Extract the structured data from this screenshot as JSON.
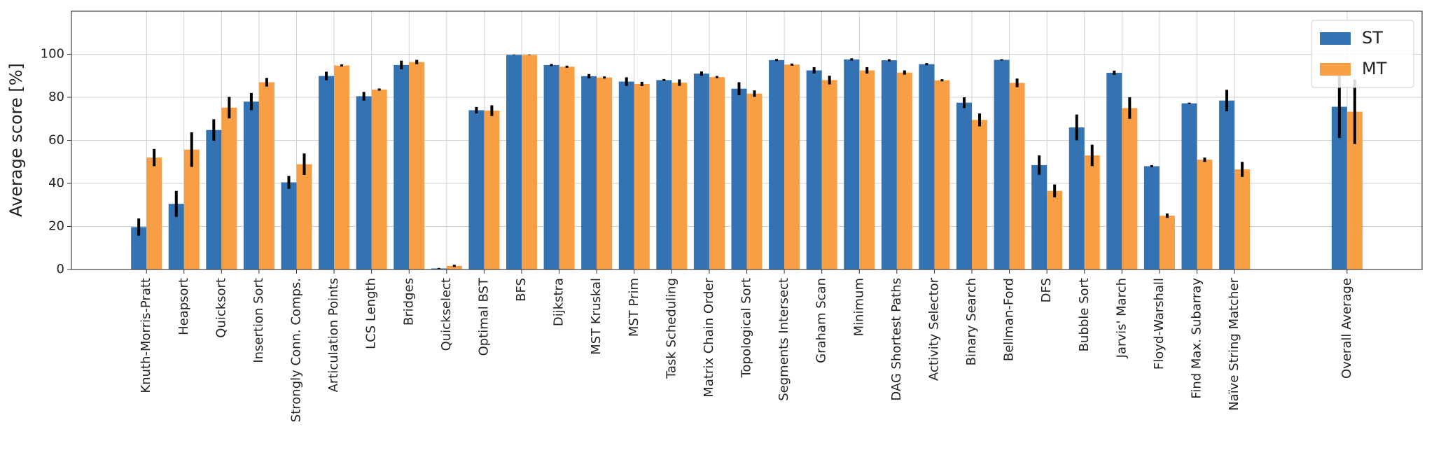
{
  "chart_data": {
    "type": "bar",
    "y_label": "Average score [%]",
    "categories": [
      "Knuth-Morris-Pratt",
      "Heapsort",
      "Quicksort",
      "Insertion Sort",
      "Strongly Conn. Comps.",
      "Articulation Points",
      "LCS Length",
      "Bridges",
      "Quickselect",
      "Optimal BST",
      "BFS",
      "Dijkstra",
      "MST Kruskal",
      "MST Prim",
      "Task Scheduling",
      "Matrix Chain Order",
      "Topological Sort",
      "Segments Intersect",
      "Graham Scan",
      "Minimum",
      "DAG Shortest Paths",
      "Activity Selector",
      "Binary Search",
      "Bellman-Ford",
      "DFS",
      "Bubble Sort",
      "Jarvis' March",
      "Floyd-Warshall",
      "Find Max. Subarray",
      "Naïve String Matcher",
      null,
      null,
      "Overall Average"
    ],
    "series": [
      {
        "name": "ST",
        "color": "#3373b3",
        "values": [
          19.7,
          30.5,
          64.8,
          78,
          40.5,
          89.9,
          80.5,
          95,
          0.5,
          74,
          99.7,
          95,
          89.8,
          87.3,
          88,
          91,
          84,
          97.3,
          92.5,
          97.6,
          97.2,
          95.4,
          77.5,
          97.4,
          48.5,
          66,
          91.4,
          48,
          77.2,
          78.5,
          null,
          null,
          75.6
        ],
        "errors": [
          4,
          6,
          5,
          4,
          3,
          2,
          2,
          2,
          0.2,
          1.5,
          0.1,
          0.5,
          1,
          2,
          0.5,
          1,
          3,
          0.5,
          1.5,
          0.5,
          0.5,
          0.5,
          2.5,
          0.3,
          4.5,
          6,
          1,
          0.5,
          0.3,
          5,
          null,
          null,
          14.5
        ]
      },
      {
        "name": "MT",
        "color": "#f89f45",
        "values": [
          52,
          55.7,
          75.2,
          87,
          48.9,
          94.8,
          83.6,
          96.4,
          1.7,
          73.8,
          99.7,
          94.2,
          89.2,
          86.2,
          86.8,
          89.4,
          81.7,
          95.2,
          88,
          92.5,
          91.5,
          87.9,
          69.5,
          86.7,
          36.5,
          53,
          75,
          25,
          51,
          46.5,
          null,
          null,
          73.3
        ],
        "errors": [
          4,
          8,
          5,
          2,
          5,
          0.5,
          0.5,
          1,
          0.5,
          2.5,
          0.1,
          0.5,
          0.5,
          1,
          1.5,
          0.5,
          1.5,
          0.5,
          2,
          1.5,
          1,
          0.5,
          3,
          2,
          3,
          5,
          5,
          1,
          1,
          3.5,
          null,
          null,
          15
        ]
      }
    ],
    "ylim": [
      0,
      120
    ],
    "yticks": [
      0,
      20,
      40,
      60,
      80,
      100
    ],
    "grid": true,
    "legend": "upper right"
  }
}
